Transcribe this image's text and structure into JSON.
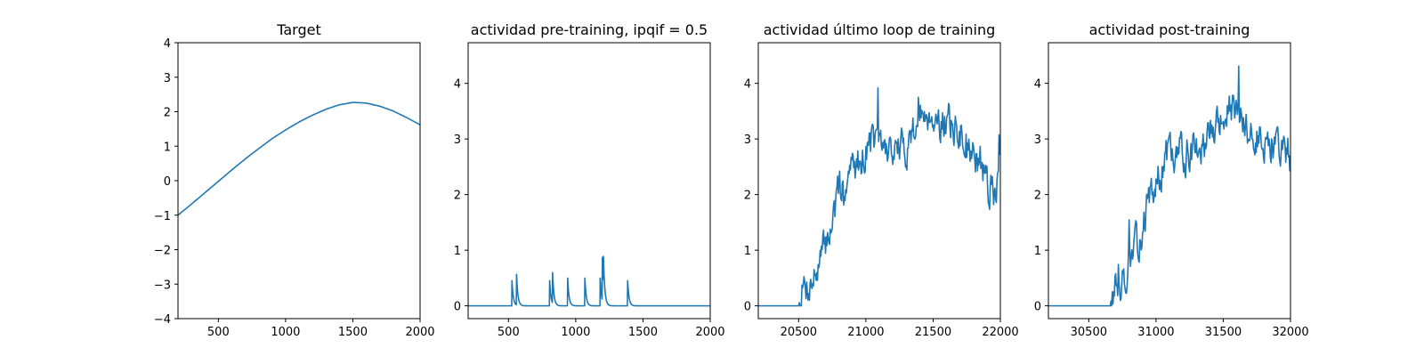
{
  "chart_data": [
    {
      "type": "line",
      "title": "Target",
      "xlabel": "",
      "ylabel": "",
      "xlim": [
        200,
        2000
      ],
      "ylim": [
        -4,
        4
      ],
      "x_ticks": [
        500,
        1000,
        1500,
        2000
      ],
      "y_ticks": [
        -4,
        -3,
        -2,
        -1,
        0,
        1,
        2,
        3,
        4
      ],
      "grid": false,
      "series": [
        {
          "color": "#1f77b4",
          "kind": "smooth",
          "x": [
            200,
            300,
            400,
            500,
            600,
            700,
            800,
            900,
            1000,
            1100,
            1200,
            1300,
            1400,
            1500,
            1600,
            1700,
            1800,
            1900,
            2000
          ],
          "y": [
            -1.0,
            -0.68,
            -0.35,
            -0.02,
            0.31,
            0.63,
            0.93,
            1.22,
            1.47,
            1.7,
            1.9,
            2.07,
            2.2,
            2.27,
            2.25,
            2.16,
            2.02,
            1.83,
            1.62
          ]
        }
      ]
    },
    {
      "type": "line",
      "title": "actividad pre-training, ipqif = 0.5",
      "xlabel": "",
      "ylabel": "",
      "xlim": [
        200,
        2000
      ],
      "ylim": [
        -0.23,
        4.73
      ],
      "x_ticks": [
        500,
        1000,
        1500,
        2000
      ],
      "y_ticks": [
        0,
        1,
        2,
        3,
        4
      ],
      "grid": false,
      "series": [
        {
          "color": "#1f77b4",
          "kind": "spikes",
          "baseline": 0,
          "decay": 10,
          "spikes": [
            [
              525,
              0.5
            ],
            [
              560,
              0.55
            ],
            [
              805,
              0.5
            ],
            [
              828,
              0.55
            ],
            [
              940,
              0.5
            ],
            [
              1068,
              0.5
            ],
            [
              1182,
              0.5
            ],
            [
              1197,
              0.85
            ],
            [
              1205,
              0.55
            ],
            [
              1385,
              0.5
            ]
          ]
        }
      ]
    },
    {
      "type": "line",
      "title": "actividad último loop de training",
      "xlabel": "",
      "ylabel": "",
      "xlim": [
        20200,
        22000
      ],
      "ylim": [
        -0.23,
        4.73
      ],
      "x_ticks": [
        20500,
        21000,
        21500,
        22000
      ],
      "y_ticks": [
        0,
        1,
        2,
        3,
        4
      ],
      "grid": false,
      "series": [
        {
          "color": "#1f77b4",
          "kind": "noisy",
          "seed": 7,
          "step": 5,
          "start_x": 20500,
          "noise": 0.55,
          "x": [
            20200,
            20500,
            20520,
            20600,
            20650,
            20700,
            20750,
            20800,
            20850,
            20900,
            20950,
            21000,
            21050,
            21100,
            21200,
            21300,
            21350,
            21400,
            21450,
            21500,
            21550,
            21600,
            21650,
            21700,
            21750,
            21800,
            21850,
            21900,
            21950,
            22000
          ],
          "y": [
            0,
            0,
            0.3,
            0.45,
            0.7,
            1.1,
            1.55,
            2.0,
            2.3,
            2.45,
            2.6,
            2.85,
            3.0,
            2.85,
            2.8,
            2.85,
            3.2,
            3.35,
            3.5,
            3.45,
            3.3,
            3.3,
            3.2,
            3.1,
            2.95,
            2.7,
            2.45,
            2.2,
            2.0,
            2.55
          ]
        }
      ]
    },
    {
      "type": "line",
      "title": "actividad post-training",
      "xlabel": "",
      "ylabel": "",
      "xlim": [
        30200,
        32000
      ],
      "ylim": [
        -0.23,
        4.73
      ],
      "x_ticks": [
        30500,
        31000,
        31500,
        32000
      ],
      "y_ticks": [
        0,
        1,
        2,
        3,
        4
      ],
      "grid": false,
      "series": [
        {
          "color": "#1f77b4",
          "kind": "noisy",
          "seed": 13,
          "step": 5,
          "start_x": 30660,
          "noise": 0.55,
          "x": [
            30200,
            30660,
            30700,
            30750,
            30800,
            30850,
            30900,
            30950,
            31000,
            31050,
            31100,
            31200,
            31300,
            31400,
            31450,
            31500,
            31550,
            31600,
            31650,
            31700,
            31800,
            31850,
            31900,
            31950,
            32000
          ],
          "y": [
            0,
            0,
            0.35,
            0.5,
            0.75,
            1.0,
            1.45,
            1.85,
            2.15,
            2.55,
            2.75,
            2.75,
            2.9,
            3.1,
            3.2,
            3.35,
            3.5,
            3.4,
            3.25,
            3.15,
            3.0,
            2.95,
            2.85,
            2.8,
            2.65
          ]
        }
      ]
    }
  ]
}
